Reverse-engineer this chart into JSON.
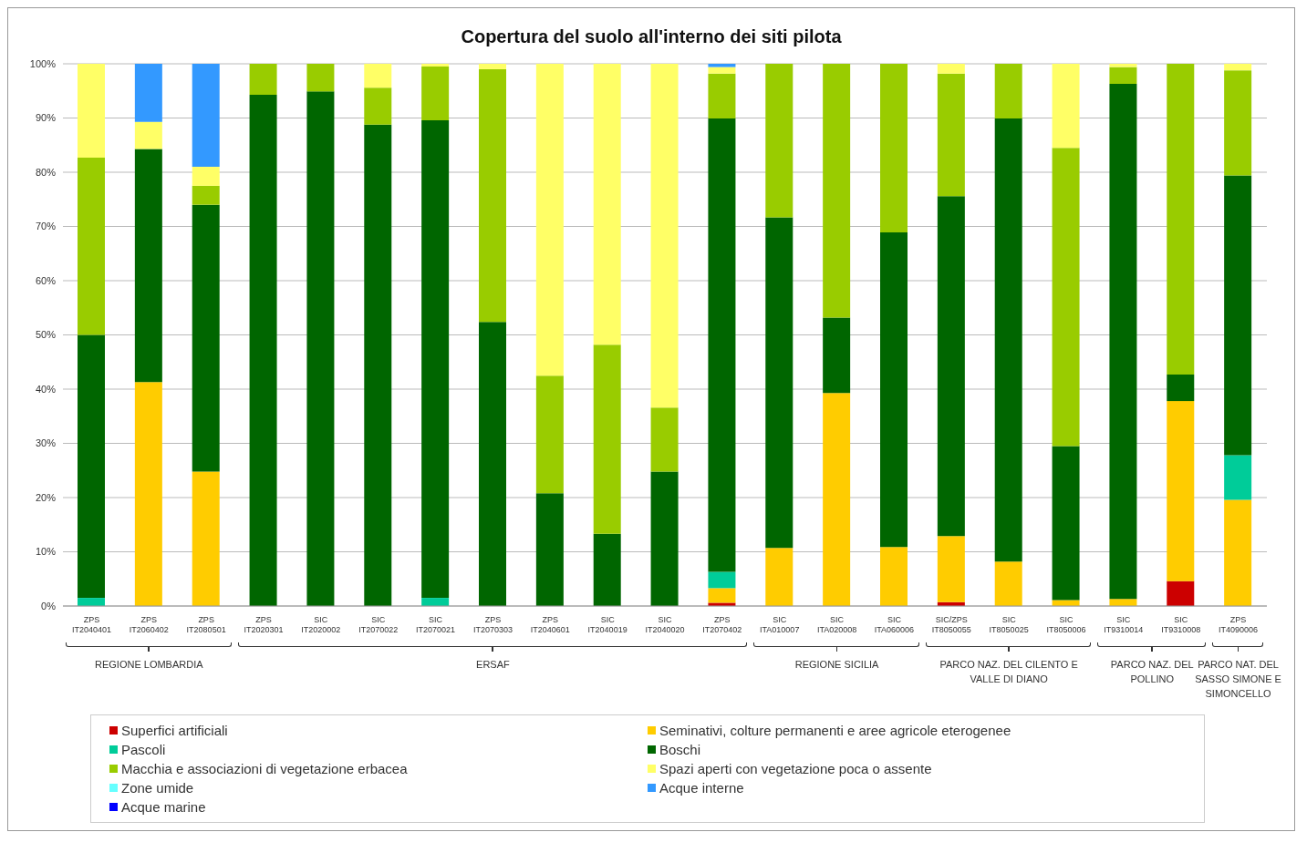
{
  "chart_data": {
    "type": "bar",
    "stacked": true,
    "title": "Copertura del suolo all'interno dei siti pilota",
    "categories": [
      "ZPS IT2040401",
      "ZPS IT2060402",
      "ZPS IT2080501",
      "ZPS IT2020301",
      "SIC IT2020002",
      "SIC IT2070022",
      "SIC IT2070021",
      "ZPS IT2070303",
      "ZPS IT2040601",
      "SIC IT2040019",
      "SIC IT2040020",
      "ZPS IT2070402",
      "SIC ITA010007",
      "SIC ITA020008",
      "SIC ITA060006",
      "SIC/ZPS IT8050055",
      "SIC IT8050025",
      "SIC IT8050006",
      "SIC IT9310014",
      "SIC IT9310008",
      "ZPS IT4090006"
    ],
    "series": [
      {
        "name": "Superfici artificiali",
        "color": "#cc0000",
        "values": [
          0,
          0,
          0,
          0,
          0,
          0,
          0,
          0,
          0,
          0,
          0,
          0.6,
          0,
          0,
          0,
          0.7,
          0,
          0,
          0,
          4.6,
          0
        ]
      },
      {
        "name": "Seminativi, colture permanenti e aree agricole eterogenee",
        "color": "#ffcc00",
        "values": [
          0,
          41.3,
          24.8,
          0,
          0,
          0,
          0,
          0,
          0,
          0,
          0,
          2.7,
          10.7,
          39.3,
          10.9,
          12.2,
          8.2,
          1.1,
          1.3,
          33.2,
          19.6
        ]
      },
      {
        "name": "Pascoli",
        "color": "#00cc99",
        "values": [
          1.5,
          0,
          0,
          0,
          0,
          0,
          1.5,
          0,
          0,
          0,
          0,
          3.0,
          0,
          0,
          0,
          0,
          0,
          0,
          0,
          0,
          8.2
        ]
      },
      {
        "name": "Boschi",
        "color": "#006600",
        "values": [
          48.5,
          43,
          49.2,
          94.3,
          94.9,
          88.8,
          88.1,
          52.4,
          20.8,
          13.3,
          24.8,
          83.6,
          61,
          13.9,
          58,
          62.7,
          81.7,
          28.4,
          95,
          4.9,
          51.6
        ]
      },
      {
        "name": "Macchia e associazioni di vegetazione erbacea",
        "color": "#99cc00",
        "values": [
          32.7,
          0,
          3.5,
          5.7,
          5.1,
          6.8,
          9.9,
          46.6,
          21.7,
          34.9,
          11.8,
          8.3,
          28.3,
          46.8,
          31.1,
          22.6,
          10.1,
          55,
          3.1,
          57.3,
          19.4
        ]
      },
      {
        "name": "Spazi aperti con vegetazione poca o assente",
        "color": "#ffff66",
        "values": [
          17.3,
          5,
          3.5,
          0,
          0,
          4.4,
          0.5,
          1,
          57.5,
          51.8,
          63.4,
          1.2,
          0,
          0,
          0,
          1.8,
          0,
          15.5,
          0.6,
          0,
          1.2
        ]
      },
      {
        "name": "Zone umide",
        "color": "#66ffff",
        "values": [
          0,
          0,
          0,
          0,
          0,
          0,
          0,
          0,
          0,
          0,
          0,
          0,
          0,
          0,
          0,
          0,
          0,
          0,
          0,
          0,
          0
        ]
      },
      {
        "name": "Acque interne",
        "color": "#3399ff",
        "values": [
          0,
          10.7,
          19,
          0,
          0,
          0,
          0,
          0,
          0,
          0,
          0,
          0.6,
          0,
          0,
          0,
          0,
          0,
          0,
          0,
          0,
          0
        ]
      },
      {
        "name": "Acque marine",
        "color": "#0000ff",
        "values": [
          0,
          0,
          0,
          0,
          0,
          0,
          0,
          0,
          0,
          0,
          0,
          0,
          0,
          0,
          0,
          0,
          0,
          0,
          0,
          0,
          0
        ]
      }
    ],
    "ylim": [
      0,
      100
    ],
    "yticks": [
      {
        "value": 0,
        "label": "0%"
      },
      {
        "value": 10,
        "label": "10%"
      },
      {
        "value": 20,
        "label": "20%"
      },
      {
        "value": 30,
        "label": "30%"
      },
      {
        "value": 40,
        "label": "40%"
      },
      {
        "value": 50,
        "label": "50%"
      },
      {
        "value": 60,
        "label": "60%"
      },
      {
        "value": 70,
        "label": "70%"
      },
      {
        "value": 80,
        "label": "80%"
      },
      {
        "value": 90,
        "label": "90%"
      },
      {
        "value": 100,
        "label": "100%"
      }
    ],
    "grid": "y",
    "legend": "bottom",
    "annotations": [
      "REGIONE LOMBARDIA",
      "ERSAF",
      "REGIONE SICILIA",
      "PARCO NAZ. DEL CILENTO E VALLE DI DIANO",
      "PARCO NAZ. DEL POLLINO",
      "PARCO NAT. DEL SASSO SIMONE E SIMONCELLO"
    ]
  }
}
